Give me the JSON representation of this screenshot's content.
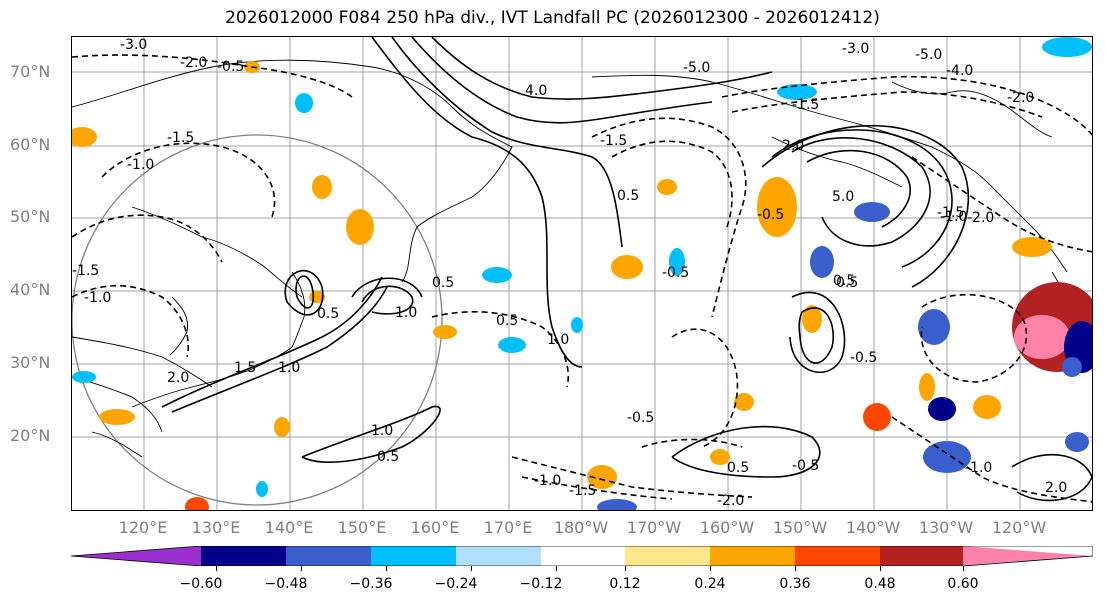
{
  "title": "2026012000 F084 250 hPa div., IVT Landfall PC (2026012300 - 2026012412)",
  "lat_labels": [
    "70°N",
    "60°N",
    "50°N",
    "40°N",
    "30°N",
    "20°N"
  ],
  "lon_labels": [
    "120°E",
    "130°E",
    "140°E",
    "150°E",
    "160°E",
    "170°E",
    "180°W",
    "170°W",
    "160°W",
    "150°W",
    "140°W",
    "130°W",
    "120°W"
  ],
  "colorbar": {
    "ticks": [
      "−0.60",
      "−0.48",
      "−0.36",
      "−0.24",
      "−0.12",
      "0.12",
      "0.24",
      "0.36",
      "0.48",
      "0.60"
    ],
    "colors": [
      "#9b30d0",
      "#00008b",
      "#3a5fcd",
      "#00bfff",
      "#b0e0ff",
      "#ffffff",
      "#ffe68a",
      "#ffa500",
      "#ff4500",
      "#b22222",
      "#ff82ab",
      "#ff82ab"
    ]
  },
  "contour_labels": [
    "-3.0",
    "-2.0",
    "-0.5",
    "-1.5",
    "-1.0",
    "-1.5",
    "-1.0",
    "4.0",
    "-5.0",
    "-3.0",
    "-5.0",
    "-4.0",
    "-2.0",
    "-1.5",
    "-1.5",
    "2.0",
    "5.0",
    "0.5",
    "-0.5",
    "0.5",
    "1.0",
    "0.5",
    "1.5",
    "0.5",
    "2.0",
    "1.0",
    "0.5",
    "1.0",
    "0.5",
    "1.0",
    "-0.5",
    "0.5",
    "-1.0",
    "-1.5",
    "-0.5",
    "-2.0",
    "-0.5",
    "-1.0",
    "2.0",
    "-1.5",
    "0.5",
    "-0.5",
    "-1.0",
    "-2.0"
  ]
}
